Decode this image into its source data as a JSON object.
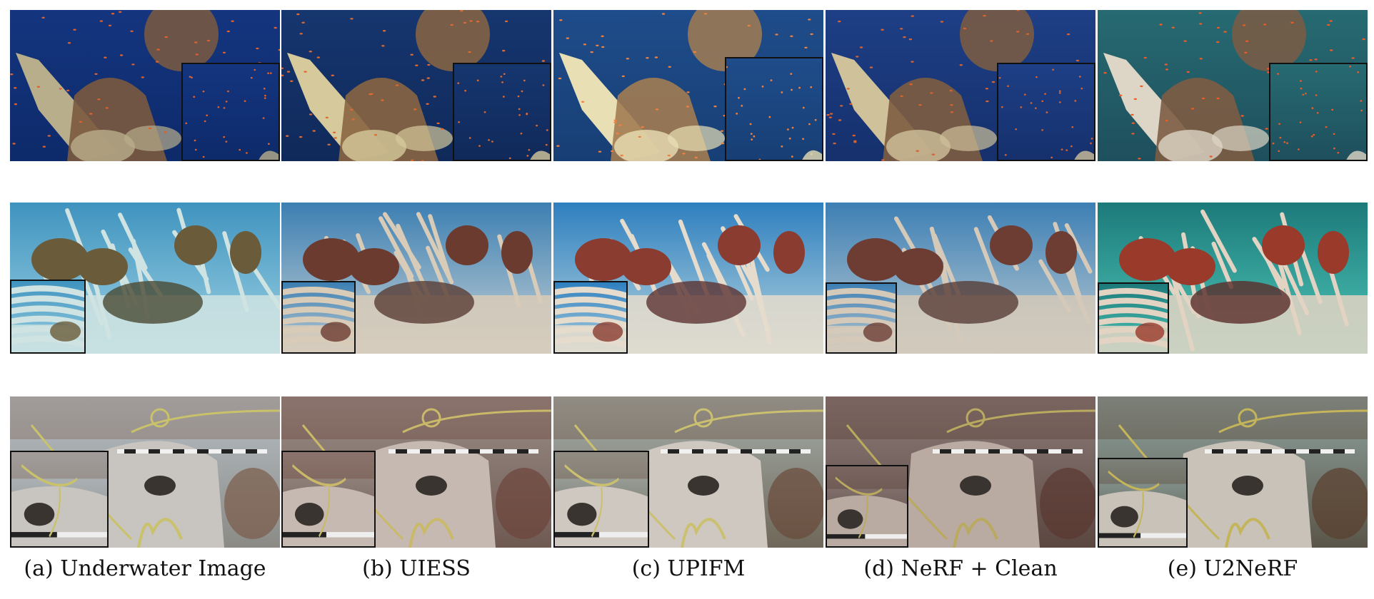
{
  "figure": {
    "columns": [
      {
        "id": "a",
        "caption": "(a) Underwater Image"
      },
      {
        "id": "b",
        "caption": "(b) UIESS"
      },
      {
        "id": "c",
        "caption": "(c) UPIFM"
      },
      {
        "id": "d",
        "caption": "(d) NeRF + Clean"
      },
      {
        "id": "e",
        "caption": "(e) U2NeRF"
      }
    ],
    "rows": [
      {
        "scene": "shipwreck-reef-with-fish"
      },
      {
        "scene": "coral-with-crown-of-thorns-starfish"
      },
      {
        "scene": "rock-with-rope-and-scale-bar"
      }
    ],
    "palettes": {
      "row1": [
        {
          "water": "#14357f",
          "water2": "#0d2a6a",
          "fg": "#b9ae8c",
          "coral": "#7c5a3f",
          "fish": "#e0612c"
        },
        {
          "water": "#16366f",
          "water2": "#10295a",
          "fg": "#d6c99b",
          "coral": "#8a6542",
          "fish": "#e06a30"
        },
        {
          "water": "#1f4c8a",
          "water2": "#173f75",
          "fg": "#e8dfb5",
          "coral": "#a27c52",
          "fish": "#f2803d"
        },
        {
          "water": "#1e3f86",
          "water2": "#15306c",
          "fg": "#cfc19a",
          "coral": "#7e5d41",
          "fish": "#d9622f"
        },
        {
          "water": "#276a72",
          "water2": "#1e4f5c",
          "fg": "#ddd6c6",
          "coral": "#7d5c44",
          "fish": "#f05a25"
        }
      ],
      "row2": [
        {
          "water": "#3f93bf",
          "water2": "#9fd3e4",
          "fg": "#cfe3e2",
          "coral": "#4a4a33",
          "star": "#6a5b3a"
        },
        {
          "water": "#3c7fb2",
          "water2": "#c9d3d6",
          "fg": "#d8cbb8",
          "coral": "#5a3d35",
          "star": "#6b3b30"
        },
        {
          "water": "#2e7fbf",
          "water2": "#b8d6df",
          "fg": "#e5dccd",
          "coral": "#5c3332",
          "star": "#8a3c30"
        },
        {
          "water": "#3d7fb4",
          "water2": "#bfcdd3",
          "fg": "#d5c9b9",
          "coral": "#573d37",
          "star": "#6d3d34"
        },
        {
          "water": "#1c7a7a",
          "water2": "#4fc7b8",
          "fg": "#e2d3c3",
          "coral": "#5b2d2a",
          "star": "#9a3a2a"
        }
      ],
      "row3": [
        {
          "water": "#b6bfc6",
          "water2": "#8b8a85",
          "fg": "#c8c4c0",
          "coral": "#7a5b4a",
          "rope": "#c9c26a"
        },
        {
          "water": "#9a8d88",
          "water2": "#6f5a52",
          "fg": "#c5b9b2",
          "coral": "#6c443a",
          "rope": "#c9b968"
        },
        {
          "water": "#a6b0ac",
          "water2": "#6f6759",
          "fg": "#cfc8c1",
          "coral": "#6a4a3a",
          "rope": "#cbc070"
        },
        {
          "water": "#8c7d7a",
          "water2": "#5b4640",
          "fg": "#b9aaa2",
          "coral": "#5a3830",
          "rope": "#b9aa60"
        },
        {
          "water": "#8fa3a0",
          "water2": "#5a5548",
          "fg": "#c9c2b9",
          "coral": "#5a3f2e",
          "rope": "#c4b45a"
        }
      ]
    }
  }
}
